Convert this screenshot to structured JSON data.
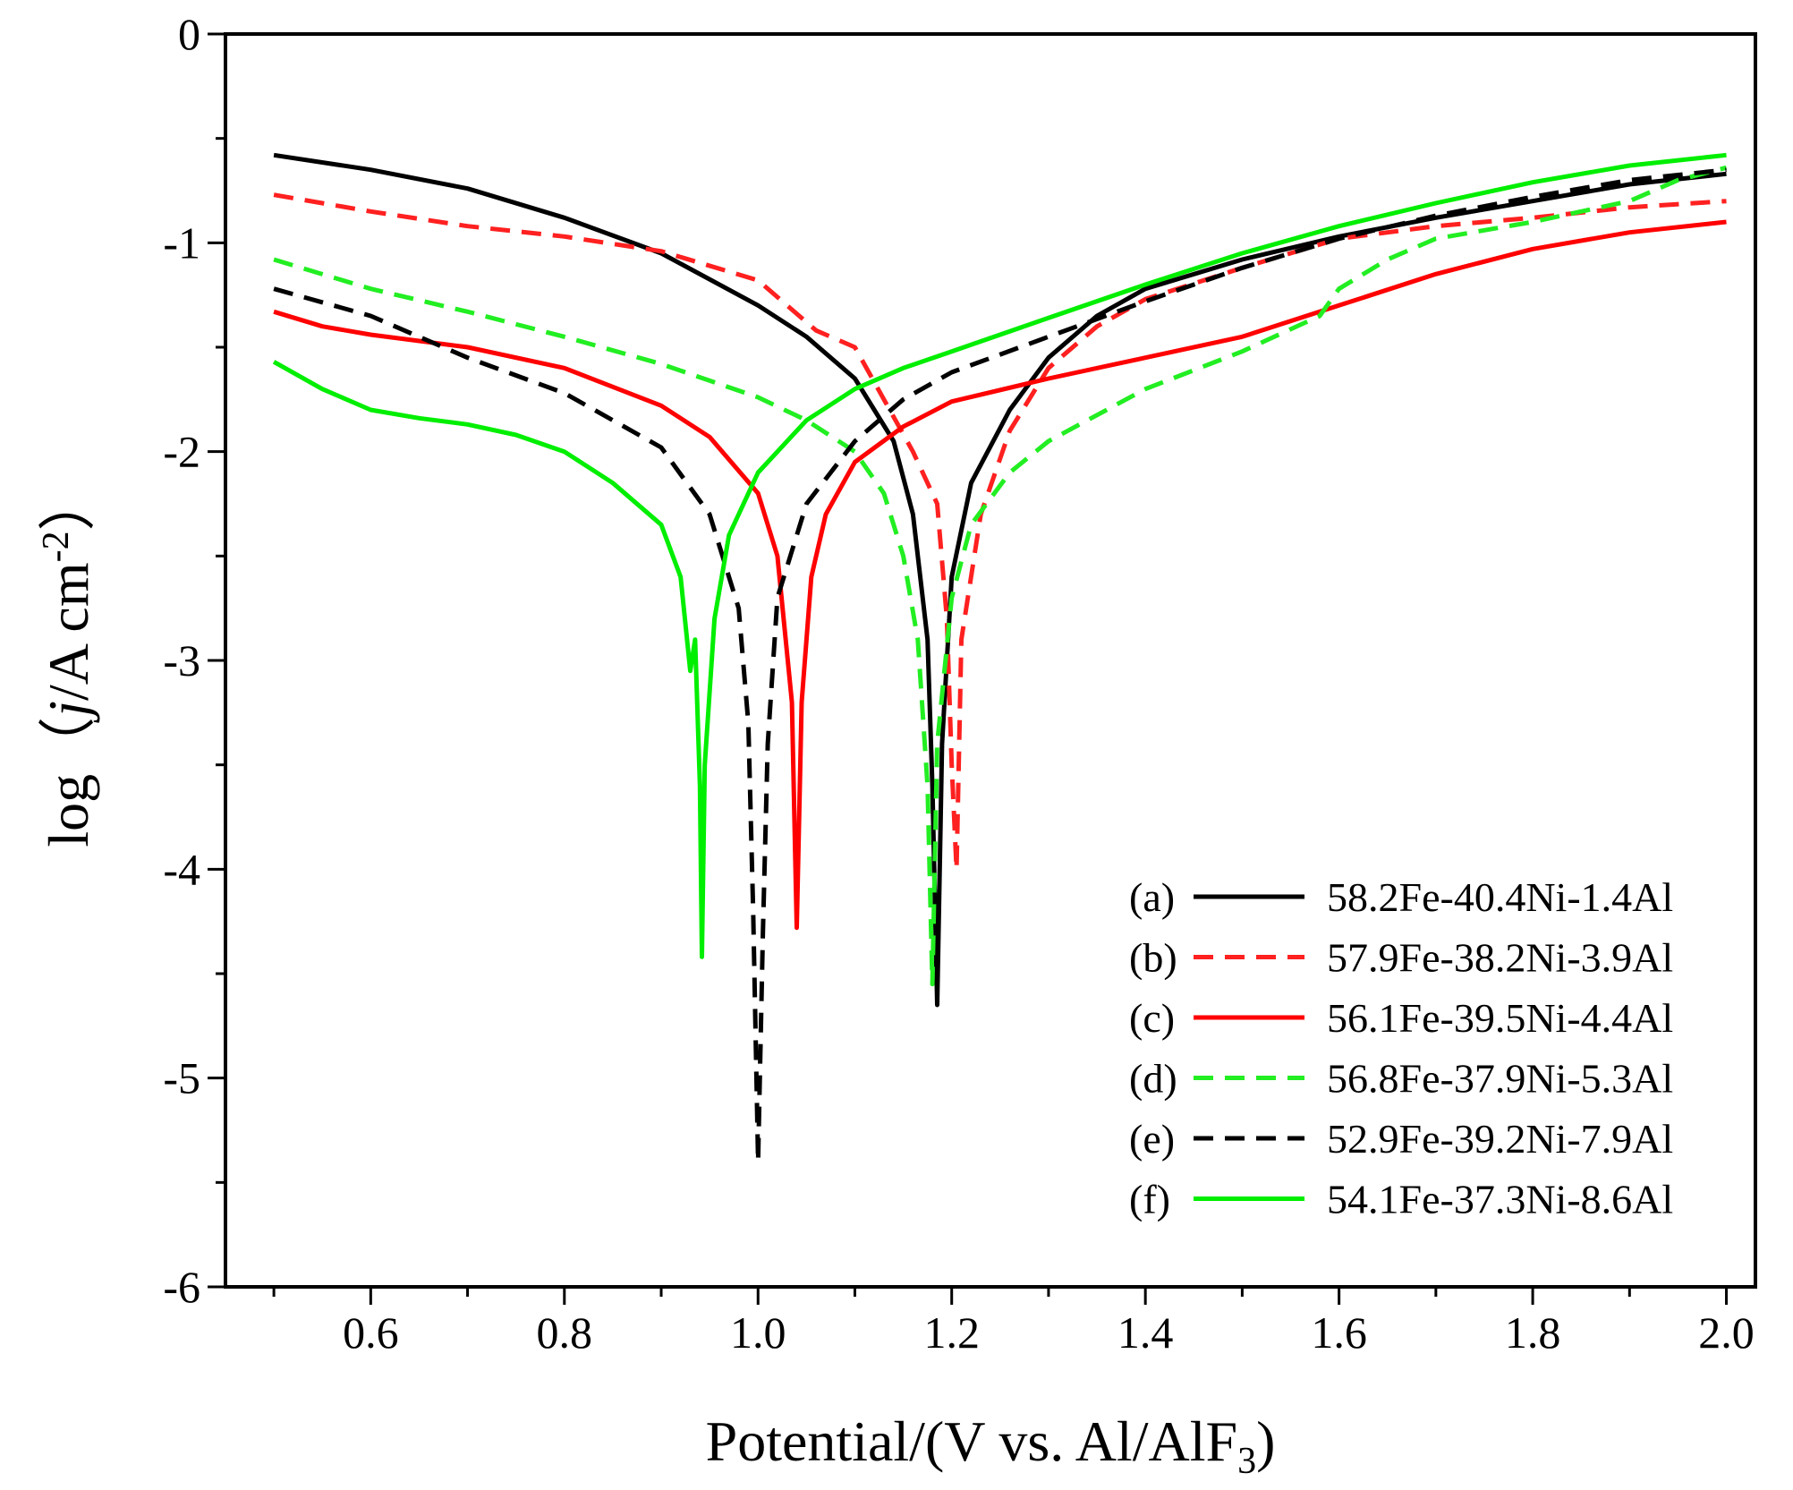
{
  "chart_data": {
    "type": "line",
    "title": "",
    "xlabel_parts": [
      "Potential/(V vs. Al/AlF",
      "3",
      ")"
    ],
    "ylabel_parts": [
      "log（",
      "j",
      "/A cm",
      "-2",
      "）"
    ],
    "xlim": [
      0.45,
      2.03
    ],
    "ylim": [
      -6,
      0
    ],
    "xticks": [
      0.6,
      0.8,
      1.0,
      1.2,
      1.4,
      1.6,
      1.8,
      2.0
    ],
    "xtick_labels": [
      "0.6",
      "0.8",
      "1.0",
      "1.2",
      "1.4",
      "1.6",
      "1.8",
      "2.0"
    ],
    "xminor": [
      0.5,
      0.7,
      0.9,
      1.1,
      1.3,
      1.5,
      1.7,
      1.9
    ],
    "yticks": [
      0,
      -1,
      -2,
      -3,
      -4,
      -5,
      -6
    ],
    "ytick_labels": [
      "0",
      "-1",
      "-2",
      "-3",
      "-4",
      "-5",
      "-6"
    ],
    "yminor": [
      -0.5,
      -1.5,
      -2.5,
      -3.5,
      -4.5,
      -5.5
    ],
    "legend_position": "bottom-right",
    "series": [
      {
        "tag": "(a)",
        "name": "58.2Fe-40.4Ni-1.4Al",
        "color": "#000000",
        "dash": "solid",
        "points": [
          [
            0.5,
            -0.58
          ],
          [
            0.6,
            -0.65
          ],
          [
            0.7,
            -0.74
          ],
          [
            0.8,
            -0.88
          ],
          [
            0.9,
            -1.05
          ],
          [
            1.0,
            -1.3
          ],
          [
            1.05,
            -1.45
          ],
          [
            1.1,
            -1.65
          ],
          [
            1.14,
            -1.95
          ],
          [
            1.16,
            -2.3
          ],
          [
            1.175,
            -2.9
          ],
          [
            1.18,
            -3.6
          ],
          [
            1.185,
            -4.65
          ],
          [
            1.19,
            -3.4
          ],
          [
            1.2,
            -2.6
          ],
          [
            1.22,
            -2.15
          ],
          [
            1.26,
            -1.8
          ],
          [
            1.3,
            -1.55
          ],
          [
            1.35,
            -1.35
          ],
          [
            1.4,
            -1.22
          ],
          [
            1.5,
            -1.08
          ],
          [
            1.6,
            -0.97
          ],
          [
            1.7,
            -0.88
          ],
          [
            1.8,
            -0.8
          ],
          [
            1.9,
            -0.72
          ],
          [
            2.0,
            -0.67
          ]
        ]
      },
      {
        "tag": "(b)",
        "name": "57.9Fe-38.2Ni-3.9Al",
        "color": "#ff2020",
        "dash": "dashed",
        "points": [
          [
            0.5,
            -0.77
          ],
          [
            0.6,
            -0.85
          ],
          [
            0.7,
            -0.92
          ],
          [
            0.8,
            -0.97
          ],
          [
            0.9,
            -1.04
          ],
          [
            1.0,
            -1.18
          ],
          [
            1.03,
            -1.3
          ],
          [
            1.06,
            -1.42
          ],
          [
            1.1,
            -1.5
          ],
          [
            1.13,
            -1.75
          ],
          [
            1.16,
            -2.0
          ],
          [
            1.185,
            -2.25
          ],
          [
            1.195,
            -2.8
          ],
          [
            1.2,
            -3.5
          ],
          [
            1.205,
            -4.0
          ],
          [
            1.21,
            -2.9
          ],
          [
            1.23,
            -2.3
          ],
          [
            1.26,
            -1.9
          ],
          [
            1.3,
            -1.6
          ],
          [
            1.35,
            -1.4
          ],
          [
            1.4,
            -1.27
          ],
          [
            1.5,
            -1.12
          ],
          [
            1.6,
            -0.98
          ],
          [
            1.7,
            -0.92
          ],
          [
            1.8,
            -0.88
          ],
          [
            1.9,
            -0.83
          ],
          [
            2.0,
            -0.8
          ]
        ]
      },
      {
        "tag": "(c)",
        "name": "56.1Fe-39.5Ni-4.4Al",
        "color": "#ff0000",
        "dash": "solid",
        "points": [
          [
            0.5,
            -1.33
          ],
          [
            0.55,
            -1.4
          ],
          [
            0.6,
            -1.44
          ],
          [
            0.7,
            -1.5
          ],
          [
            0.8,
            -1.6
          ],
          [
            0.9,
            -1.78
          ],
          [
            0.95,
            -1.93
          ],
          [
            1.0,
            -2.2
          ],
          [
            1.02,
            -2.5
          ],
          [
            1.035,
            -3.2
          ],
          [
            1.04,
            -4.28
          ],
          [
            1.045,
            -3.2
          ],
          [
            1.055,
            -2.6
          ],
          [
            1.07,
            -2.3
          ],
          [
            1.1,
            -2.05
          ],
          [
            1.15,
            -1.88
          ],
          [
            1.2,
            -1.76
          ],
          [
            1.3,
            -1.65
          ],
          [
            1.4,
            -1.55
          ],
          [
            1.5,
            -1.45
          ],
          [
            1.6,
            -1.3
          ],
          [
            1.7,
            -1.15
          ],
          [
            1.8,
            -1.03
          ],
          [
            1.9,
            -0.95
          ],
          [
            2.0,
            -0.9
          ]
        ]
      },
      {
        "tag": "(d)",
        "name": "56.8Fe-37.9Ni-5.3Al",
        "color": "#22ee22",
        "dash": "dashed",
        "points": [
          [
            0.5,
            -1.08
          ],
          [
            0.6,
            -1.22
          ],
          [
            0.7,
            -1.33
          ],
          [
            0.8,
            -1.45
          ],
          [
            0.9,
            -1.58
          ],
          [
            1.0,
            -1.74
          ],
          [
            1.05,
            -1.85
          ],
          [
            1.1,
            -2.0
          ],
          [
            1.13,
            -2.2
          ],
          [
            1.15,
            -2.5
          ],
          [
            1.165,
            -2.9
          ],
          [
            1.175,
            -3.6
          ],
          [
            1.18,
            -4.55
          ],
          [
            1.185,
            -3.4
          ],
          [
            1.2,
            -2.7
          ],
          [
            1.22,
            -2.35
          ],
          [
            1.26,
            -2.1
          ],
          [
            1.3,
            -1.95
          ],
          [
            1.4,
            -1.7
          ],
          [
            1.5,
            -1.52
          ],
          [
            1.58,
            -1.35
          ],
          [
            1.6,
            -1.22
          ],
          [
            1.65,
            -1.08
          ],
          [
            1.7,
            -0.98
          ],
          [
            1.8,
            -0.9
          ],
          [
            1.9,
            -0.8
          ],
          [
            1.95,
            -0.7
          ],
          [
            2.0,
            -0.64
          ]
        ]
      },
      {
        "tag": "(e)",
        "name": "52.9Fe-39.2Ni-7.9Al",
        "color": "#000000",
        "dash": "dashed",
        "points": [
          [
            0.5,
            -1.22
          ],
          [
            0.6,
            -1.35
          ],
          [
            0.7,
            -1.55
          ],
          [
            0.8,
            -1.72
          ],
          [
            0.9,
            -1.98
          ],
          [
            0.95,
            -2.3
          ],
          [
            0.98,
            -2.75
          ],
          [
            0.99,
            -3.3
          ],
          [
            0.995,
            -4.2
          ],
          [
            1.0,
            -5.4
          ],
          [
            1.005,
            -4.3
          ],
          [
            1.01,
            -3.4
          ],
          [
            1.02,
            -2.7
          ],
          [
            1.05,
            -2.25
          ],
          [
            1.1,
            -1.95
          ],
          [
            1.15,
            -1.75
          ],
          [
            1.2,
            -1.62
          ],
          [
            1.3,
            -1.45
          ],
          [
            1.4,
            -1.28
          ],
          [
            1.5,
            -1.12
          ],
          [
            1.6,
            -0.98
          ],
          [
            1.7,
            -0.87
          ],
          [
            1.8,
            -0.78
          ],
          [
            1.9,
            -0.7
          ],
          [
            2.0,
            -0.65
          ]
        ]
      },
      {
        "tag": "(f)",
        "name": "54.1Fe-37.3Ni-8.6Al",
        "color": "#00ee00",
        "dash": "solid",
        "points": [
          [
            0.5,
            -1.57
          ],
          [
            0.55,
            -1.7
          ],
          [
            0.6,
            -1.8
          ],
          [
            0.65,
            -1.84
          ],
          [
            0.7,
            -1.87
          ],
          [
            0.75,
            -1.92
          ],
          [
            0.8,
            -2.0
          ],
          [
            0.85,
            -2.15
          ],
          [
            0.9,
            -2.35
          ],
          [
            0.92,
            -2.6
          ],
          [
            0.93,
            -3.05
          ],
          [
            0.935,
            -2.9
          ],
          [
            0.94,
            -3.6
          ],
          [
            0.942,
            -4.42
          ],
          [
            0.945,
            -3.5
          ],
          [
            0.955,
            -2.8
          ],
          [
            0.97,
            -2.4
          ],
          [
            1.0,
            -2.1
          ],
          [
            1.05,
            -1.85
          ],
          [
            1.1,
            -1.7
          ],
          [
            1.15,
            -1.6
          ],
          [
            1.2,
            -1.52
          ],
          [
            1.3,
            -1.36
          ],
          [
            1.4,
            -1.2
          ],
          [
            1.5,
            -1.05
          ],
          [
            1.6,
            -0.92
          ],
          [
            1.7,
            -0.81
          ],
          [
            1.8,
            -0.71
          ],
          [
            1.9,
            -0.63
          ],
          [
            2.0,
            -0.58
          ]
        ]
      }
    ]
  }
}
